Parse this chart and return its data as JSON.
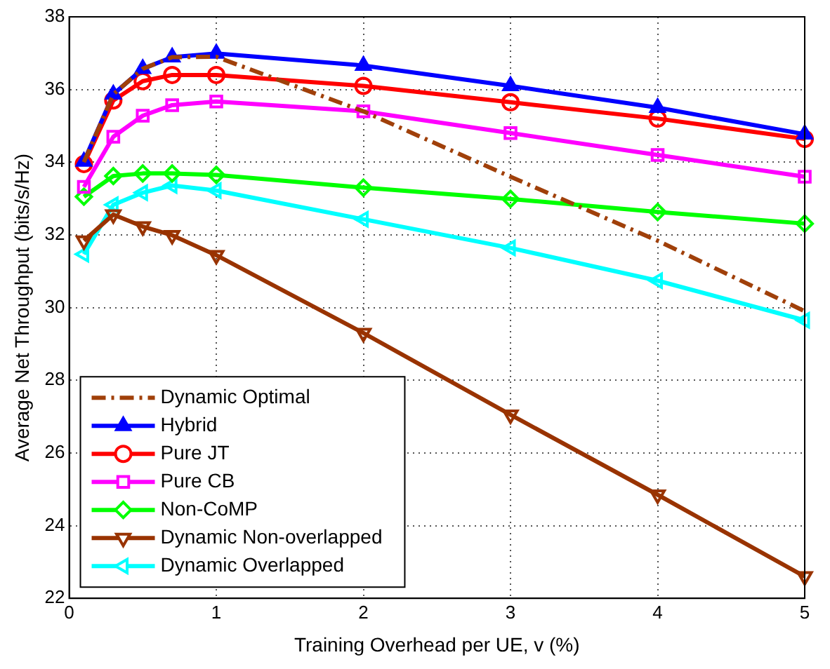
{
  "chart_data": {
    "type": "line",
    "xlabel": "Training Overhead per UE, v (%)",
    "ylabel": "Average Net Throughput (bits/s/Hz)",
    "x": [
      0.1,
      0.3,
      0.5,
      0.7,
      1,
      2,
      3,
      4,
      5
    ],
    "xlim": [
      0,
      5
    ],
    "xticks": [
      0,
      1,
      2,
      3,
      4,
      5
    ],
    "ylim": [
      22,
      38
    ],
    "yticks": [
      22,
      24,
      26,
      28,
      30,
      32,
      34,
      36,
      38
    ],
    "grid": true,
    "legend": "bottom left",
    "series": [
      {
        "name": "Dynamic Optimal",
        "color": "#a0400a",
        "line_style": "dashed",
        "marker": "none",
        "values": [
          34.0,
          35.87,
          36.57,
          36.89,
          36.9,
          35.4,
          33.6,
          31.84,
          29.9
        ]
      },
      {
        "name": "Hybrid",
        "color": "#0000ff",
        "marker": "triangle",
        "values": [
          34.02,
          35.87,
          36.57,
          36.89,
          36.99,
          36.66,
          36.1,
          35.5,
          34.77
        ]
      },
      {
        "name": "Pure JT",
        "color": "#ff0000",
        "marker": "circle",
        "values": [
          33.95,
          35.7,
          36.23,
          36.4,
          36.4,
          36.1,
          35.65,
          35.2,
          34.64
        ]
      },
      {
        "name": "Pure CB",
        "color": "#ff00ff",
        "marker": "square",
        "values": [
          33.32,
          34.7,
          35.28,
          35.57,
          35.67,
          35.4,
          34.8,
          34.2,
          33.6
        ]
      },
      {
        "name": "Non-CoMP",
        "color": "#00ff00",
        "marker": "diamond",
        "values": [
          33.05,
          33.62,
          33.69,
          33.69,
          33.65,
          33.3,
          32.99,
          32.63,
          32.31
        ]
      },
      {
        "name": "Dynamic Non-overlapped",
        "color": "#993300",
        "marker": "triangle-down",
        "values": [
          31.84,
          32.56,
          32.23,
          31.99,
          31.44,
          29.3,
          27.05,
          24.85,
          22.6
        ]
      },
      {
        "name": "Dynamic Overlapped",
        "color": "#00ffff",
        "marker": "triangle-left",
        "values": [
          31.47,
          32.83,
          33.16,
          33.36,
          33.22,
          32.43,
          31.64,
          30.74,
          29.65
        ]
      }
    ]
  }
}
